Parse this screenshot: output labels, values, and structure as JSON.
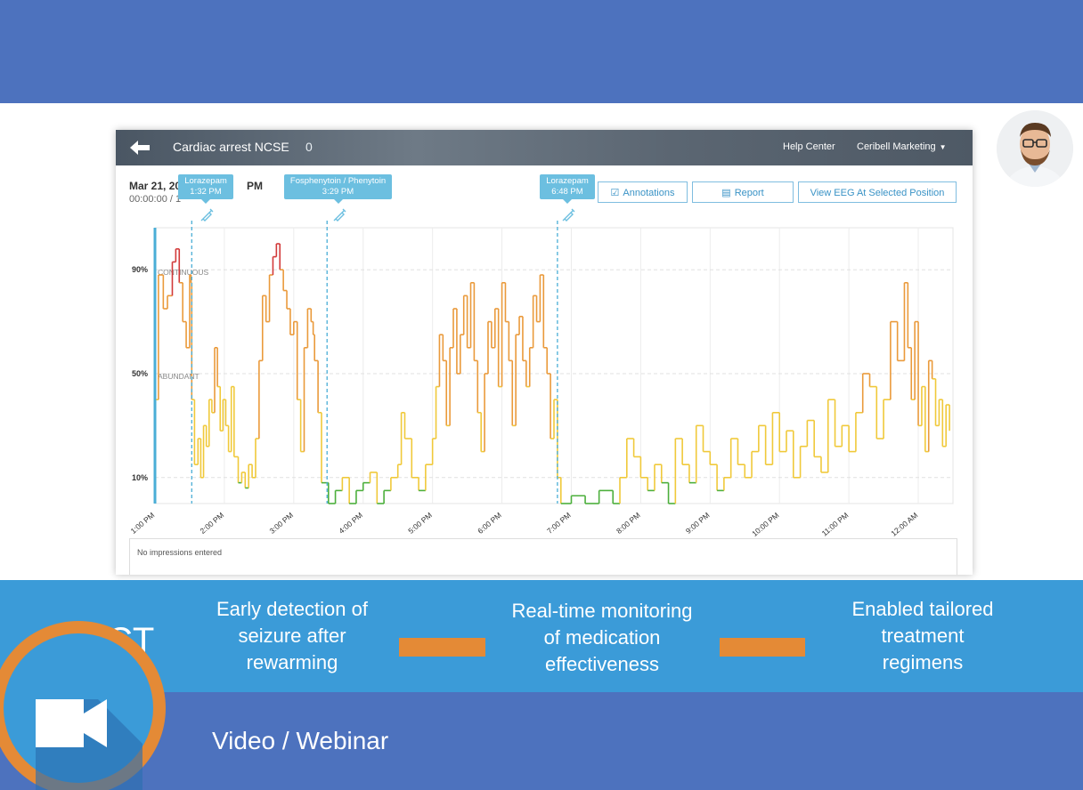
{
  "app": {
    "title": "Cardiac arrest NCSE",
    "count": "0",
    "help_label": "Help Center",
    "user_label": "Ceribell Marketing",
    "date": "Mar 21, 20",
    "date_suffix": "PM",
    "time": "00:00:00 / 1"
  },
  "buttons": {
    "annotations": "Annotations",
    "report": "Report",
    "view_eeg": "View EEG At Selected Position"
  },
  "medications": [
    {
      "name": "Lorazepam",
      "time": "1:32 PM"
    },
    {
      "name": "Fosphenytoin / Phenytoin",
      "time": "3:29 PM"
    },
    {
      "name": "Lorazepam",
      "time": "6:48 PM"
    }
  ],
  "chart_data": {
    "type": "line",
    "y_ticks": [
      "90%",
      "50%",
      "10%"
    ],
    "y_bands": [
      "CONTINUOUS",
      "ABUNDANT"
    ],
    "x_ticks": [
      "1:00 PM",
      "2:00 PM",
      "3:00 PM",
      "4:00 PM",
      "5:00 PM",
      "6:00 PM",
      "7:00 PM",
      "8:00 PM",
      "9:00 PM",
      "10:00 PM",
      "11:00 PM",
      "12:00 AM"
    ],
    "ylim": [
      0,
      100
    ],
    "xlim": [
      13.0,
      24.5
    ],
    "colors": {
      "low": "#4caf3c",
      "mid": "#f0c93a",
      "high": "#ea9a3b",
      "peak": "#d23a3a"
    },
    "points": [
      [
        13.0,
        40
      ],
      [
        13.05,
        88
      ],
      [
        13.12,
        75
      ],
      [
        13.18,
        80
      ],
      [
        13.25,
        93
      ],
      [
        13.3,
        98
      ],
      [
        13.35,
        85
      ],
      [
        13.4,
        70
      ],
      [
        13.45,
        60
      ],
      [
        13.5,
        88
      ],
      [
        13.52,
        85
      ],
      [
        13.53,
        40
      ],
      [
        13.57,
        15
      ],
      [
        13.62,
        25
      ],
      [
        13.66,
        10
      ],
      [
        13.7,
        30
      ],
      [
        13.74,
        22
      ],
      [
        13.78,
        40
      ],
      [
        13.82,
        35
      ],
      [
        13.86,
        60
      ],
      [
        13.9,
        45
      ],
      [
        13.94,
        28
      ],
      [
        13.98,
        40
      ],
      [
        14.02,
        30
      ],
      [
        14.06,
        20
      ],
      [
        14.1,
        45
      ],
      [
        14.14,
        18
      ],
      [
        14.2,
        8
      ],
      [
        14.25,
        12
      ],
      [
        14.3,
        6
      ],
      [
        14.35,
        15
      ],
      [
        14.4,
        10
      ],
      [
        14.45,
        25
      ],
      [
        14.5,
        55
      ],
      [
        14.55,
        80
      ],
      [
        14.6,
        70
      ],
      [
        14.65,
        88
      ],
      [
        14.7,
        95
      ],
      [
        14.75,
        100
      ],
      [
        14.8,
        90
      ],
      [
        14.85,
        82
      ],
      [
        14.9,
        75
      ],
      [
        14.95,
        65
      ],
      [
        15.0,
        70
      ],
      [
        15.05,
        40
      ],
      [
        15.1,
        20
      ],
      [
        15.15,
        60
      ],
      [
        15.2,
        75
      ],
      [
        15.25,
        70
      ],
      [
        15.28,
        65
      ],
      [
        15.3,
        55
      ],
      [
        15.35,
        35
      ],
      [
        15.4,
        8
      ],
      [
        15.5,
        0
      ],
      [
        15.6,
        5
      ],
      [
        15.7,
        10
      ],
      [
        15.8,
        0
      ],
      [
        15.9,
        5
      ],
      [
        16.0,
        8
      ],
      [
        16.1,
        12
      ],
      [
        16.2,
        0
      ],
      [
        16.3,
        5
      ],
      [
        16.4,
        10
      ],
      [
        16.5,
        15
      ],
      [
        16.55,
        35
      ],
      [
        16.6,
        25
      ],
      [
        16.7,
        10
      ],
      [
        16.8,
        5
      ],
      [
        16.9,
        15
      ],
      [
        17.0,
        25
      ],
      [
        17.05,
        45
      ],
      [
        17.1,
        65
      ],
      [
        17.15,
        55
      ],
      [
        17.2,
        30
      ],
      [
        17.25,
        60
      ],
      [
        17.3,
        75
      ],
      [
        17.35,
        50
      ],
      [
        17.4,
        65
      ],
      [
        17.45,
        80
      ],
      [
        17.5,
        60
      ],
      [
        17.55,
        85
      ],
      [
        17.6,
        55
      ],
      [
        17.65,
        35
      ],
      [
        17.7,
        20
      ],
      [
        17.75,
        50
      ],
      [
        17.8,
        70
      ],
      [
        17.85,
        60
      ],
      [
        17.9,
        75
      ],
      [
        17.95,
        45
      ],
      [
        18.0,
        85
      ],
      [
        18.05,
        70
      ],
      [
        18.1,
        55
      ],
      [
        18.15,
        30
      ],
      [
        18.2,
        65
      ],
      [
        18.25,
        72
      ],
      [
        18.3,
        55
      ],
      [
        18.35,
        45
      ],
      [
        18.4,
        60
      ],
      [
        18.45,
        80
      ],
      [
        18.5,
        70
      ],
      [
        18.55,
        88
      ],
      [
        18.6,
        60
      ],
      [
        18.65,
        50
      ],
      [
        18.7,
        25
      ],
      [
        18.75,
        40
      ],
      [
        18.8,
        10
      ],
      [
        18.85,
        0
      ],
      [
        19.0,
        3
      ],
      [
        19.2,
        0
      ],
      [
        19.4,
        5
      ],
      [
        19.6,
        0
      ],
      [
        19.7,
        10
      ],
      [
        19.8,
        25
      ],
      [
        19.9,
        18
      ],
      [
        20.0,
        10
      ],
      [
        20.1,
        5
      ],
      [
        20.2,
        15
      ],
      [
        20.3,
        8
      ],
      [
        20.4,
        0
      ],
      [
        20.5,
        25
      ],
      [
        20.6,
        15
      ],
      [
        20.7,
        8
      ],
      [
        20.8,
        30
      ],
      [
        20.9,
        20
      ],
      [
        21.0,
        15
      ],
      [
        21.1,
        5
      ],
      [
        21.2,
        10
      ],
      [
        21.3,
        25
      ],
      [
        21.4,
        15
      ],
      [
        21.5,
        10
      ],
      [
        21.6,
        20
      ],
      [
        21.7,
        30
      ],
      [
        21.8,
        15
      ],
      [
        21.9,
        35
      ],
      [
        22.0,
        20
      ],
      [
        22.1,
        28
      ],
      [
        22.2,
        10
      ],
      [
        22.3,
        22
      ],
      [
        22.4,
        32
      ],
      [
        22.5,
        18
      ],
      [
        22.6,
        12
      ],
      [
        22.7,
        40
      ],
      [
        22.8,
        22
      ],
      [
        22.9,
        30
      ],
      [
        23.0,
        20
      ],
      [
        23.1,
        35
      ],
      [
        23.2,
        50
      ],
      [
        23.3,
        45
      ],
      [
        23.4,
        25
      ],
      [
        23.5,
        40
      ],
      [
        23.6,
        70
      ],
      [
        23.7,
        55
      ],
      [
        23.8,
        85
      ],
      [
        23.85,
        60
      ],
      [
        23.9,
        40
      ],
      [
        23.95,
        70
      ],
      [
        24.0,
        30
      ],
      [
        24.05,
        45
      ],
      [
        24.1,
        20
      ],
      [
        24.15,
        55
      ],
      [
        24.2,
        48
      ],
      [
        24.25,
        30
      ],
      [
        24.3,
        40
      ],
      [
        24.35,
        22
      ],
      [
        24.4,
        38
      ],
      [
        24.45,
        28
      ]
    ],
    "markers": [
      {
        "time": 13.53,
        "label_index": 0
      },
      {
        "time": 15.48,
        "label_index": 1
      },
      {
        "time": 18.8,
        "label_index": 2
      }
    ]
  },
  "impressions": "No impressions entered",
  "impact": {
    "partial_heading": "CT",
    "item1": [
      "Early detection of",
      "seizure after",
      "rewarming"
    ],
    "item2": [
      "Real-time monitoring",
      "of medication",
      "effectiveness"
    ],
    "item3": [
      "Enabled tailored",
      "treatment",
      "regimens"
    ]
  },
  "footer": {
    "label": "Video / Webinar",
    "icon": "video-camera-icon"
  }
}
